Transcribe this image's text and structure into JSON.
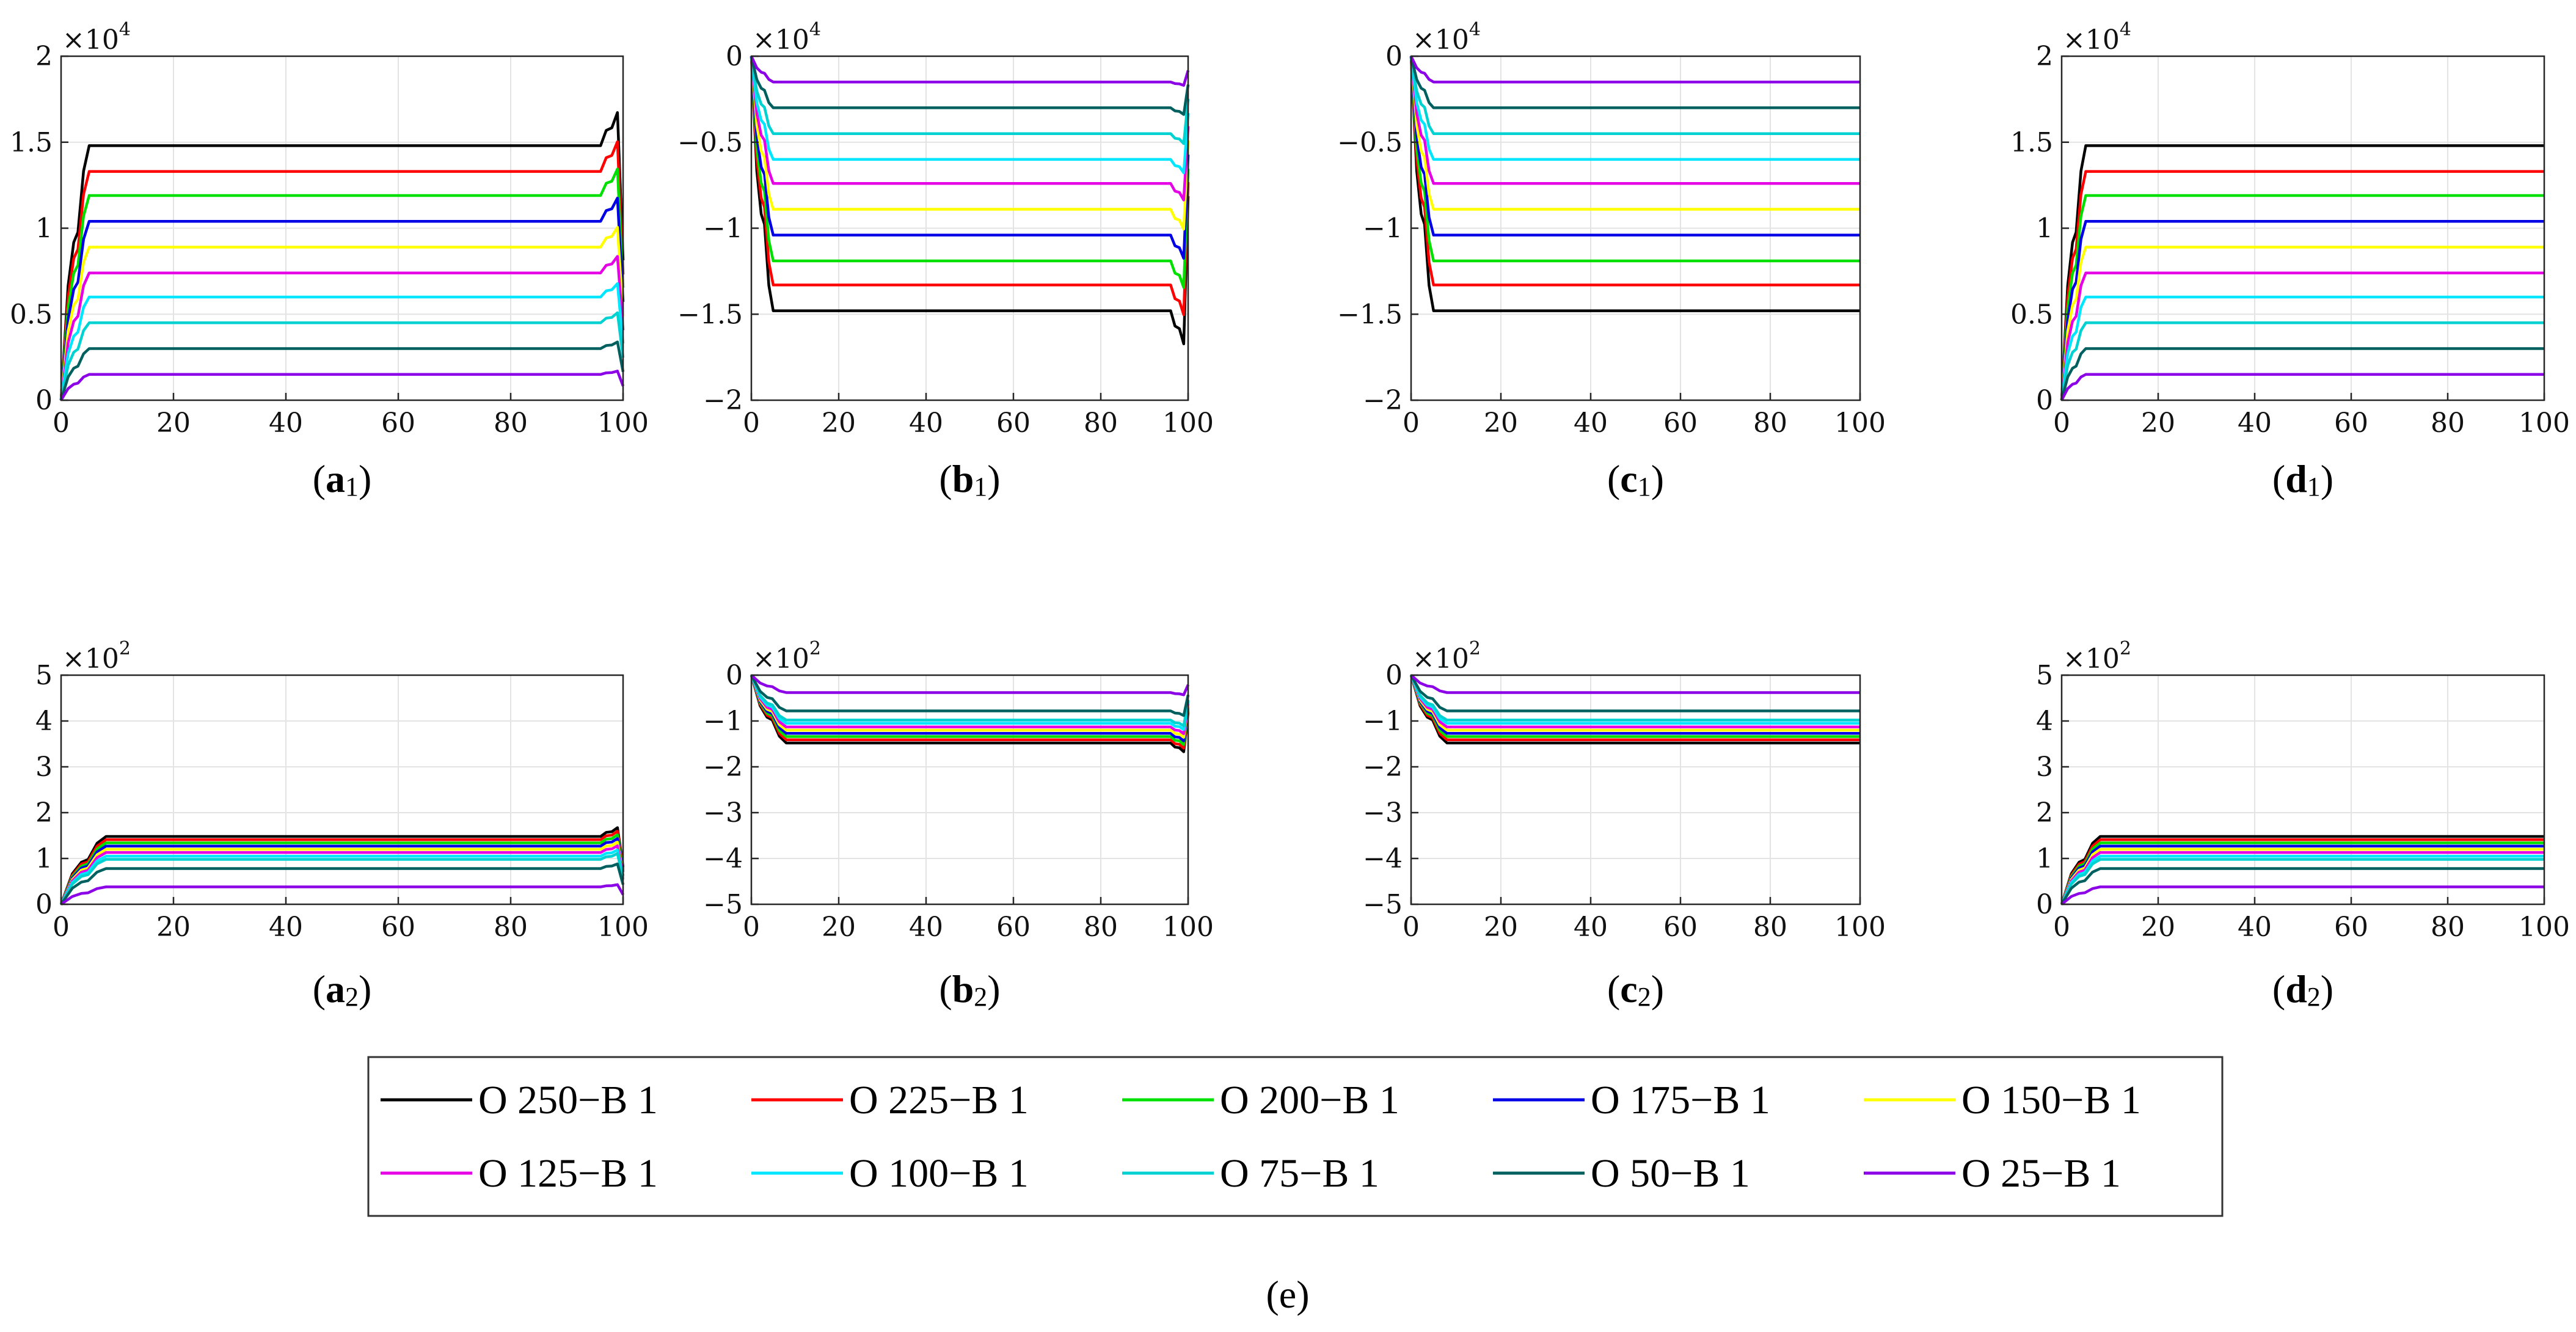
{
  "legend": {
    "items": [
      {
        "label": "O 250−B 1",
        "color": "#000000"
      },
      {
        "label": "O 225−B 1",
        "color": "#ff0000"
      },
      {
        "label": "O 200−B 1",
        "color": "#00e000"
      },
      {
        "label": "O 175−B 1",
        "color": "#0000e6"
      },
      {
        "label": "O 150−B 1",
        "color": "#ffff00"
      },
      {
        "label": "O 125−B 1",
        "color": "#e600e6"
      },
      {
        "label": "O 100−B 1",
        "color": "#00e6ff"
      },
      {
        "label": "O 75−B 1",
        "color": "#00d2d2"
      },
      {
        "label": "O 50−B 1",
        "color": "#006060"
      },
      {
        "label": "O 25−B 1",
        "color": "#8b00e6"
      }
    ]
  },
  "figure_caption": "(e)",
  "chart_data": [
    {
      "id": "a1",
      "type": "line",
      "caption": {
        "open": "(",
        "letter": "a",
        "sub": "1",
        "close": ")"
      },
      "multiplier": {
        "base": "×10",
        "exp": "4"
      },
      "xlim": [
        0,
        100
      ],
      "ylim": [
        0,
        2
      ],
      "xticks": [
        0,
        20,
        40,
        60,
        80,
        100
      ],
      "yticks": [
        0,
        0.5,
        1,
        1.5,
        2
      ],
      "ytick_labels": [
        "0",
        "0.5",
        "1",
        "1.5",
        "2"
      ],
      "grid": true,
      "sign": 1,
      "ramp": 5,
      "end_spike": true,
      "levels": [
        1.48,
        1.33,
        1.19,
        1.04,
        0.89,
        0.74,
        0.6,
        0.45,
        0.3,
        0.15
      ]
    },
    {
      "id": "b1",
      "type": "line",
      "caption": {
        "open": "(",
        "letter": "b",
        "sub": "1",
        "close": ")"
      },
      "multiplier": {
        "base": "×10",
        "exp": "4"
      },
      "xlim": [
        0,
        100
      ],
      "ylim": [
        -2,
        0
      ],
      "xticks": [
        0,
        20,
        40,
        60,
        80,
        100
      ],
      "yticks": [
        -2,
        -1.5,
        -1,
        -0.5,
        0
      ],
      "ytick_labels": [
        "−2",
        "−1.5",
        "−1",
        "−0.5",
        "0"
      ],
      "grid": true,
      "sign": -1,
      "ramp": 5,
      "end_spike": true,
      "levels": [
        1.48,
        1.33,
        1.19,
        1.04,
        0.89,
        0.74,
        0.6,
        0.45,
        0.3,
        0.15
      ]
    },
    {
      "id": "c1",
      "type": "line",
      "caption": {
        "open": "(",
        "letter": "c",
        "sub": "1",
        "close": ")"
      },
      "multiplier": {
        "base": "×10",
        "exp": "4"
      },
      "xlim": [
        0,
        100
      ],
      "ylim": [
        -2,
        0
      ],
      "xticks": [
        0,
        20,
        40,
        60,
        80,
        100
      ],
      "yticks": [
        -2,
        -1.5,
        -1,
        -0.5,
        0
      ],
      "ytick_labels": [
        "−2",
        "−1.5",
        "−1",
        "−0.5",
        "0"
      ],
      "grid": true,
      "sign": -1,
      "ramp": 5,
      "end_spike": false,
      "levels": [
        1.48,
        1.33,
        1.19,
        1.04,
        0.89,
        0.74,
        0.6,
        0.45,
        0.3,
        0.15
      ]
    },
    {
      "id": "d1",
      "type": "line",
      "caption": {
        "open": "(",
        "letter": "d",
        "sub": "1",
        "close": ")"
      },
      "multiplier": {
        "base": "×10",
        "exp": "4"
      },
      "xlim": [
        0,
        100
      ],
      "ylim": [
        0,
        2
      ],
      "xticks": [
        0,
        20,
        40,
        60,
        80,
        100
      ],
      "yticks": [
        0,
        0.5,
        1,
        1.5,
        2
      ],
      "ytick_labels": [
        "0",
        "0.5",
        "1",
        "1.5",
        "2"
      ],
      "grid": true,
      "sign": 1,
      "ramp": 5,
      "end_spike": false,
      "levels": [
        1.48,
        1.33,
        1.19,
        1.04,
        0.89,
        0.74,
        0.6,
        0.45,
        0.3,
        0.15
      ]
    },
    {
      "id": "a2",
      "type": "line",
      "caption": {
        "open": "(",
        "letter": "a",
        "sub": "2",
        "close": ")"
      },
      "multiplier": {
        "base": "×10",
        "exp": "2"
      },
      "xlim": [
        0,
        100
      ],
      "ylim": [
        0,
        5
      ],
      "xticks": [
        0,
        20,
        40,
        60,
        80,
        100
      ],
      "yticks": [
        0,
        1,
        2,
        3,
        4,
        5
      ],
      "ytick_labels": [
        "0",
        "1",
        "2",
        "3",
        "4",
        "5"
      ],
      "grid": true,
      "sign": 1,
      "ramp": 8,
      "end_spike": true,
      "levels": [
        1.48,
        1.41,
        1.34,
        1.27,
        1.2,
        1.13,
        1.05,
        0.98,
        0.78,
        0.38
      ]
    },
    {
      "id": "b2",
      "type": "line",
      "caption": {
        "open": "(",
        "letter": "b",
        "sub": "2",
        "close": ")"
      },
      "multiplier": {
        "base": "×10",
        "exp": "2"
      },
      "xlim": [
        0,
        100
      ],
      "ylim": [
        -5,
        0
      ],
      "xticks": [
        0,
        20,
        40,
        60,
        80,
        100
      ],
      "yticks": [
        -5,
        -4,
        -3,
        -2,
        -1,
        0
      ],
      "ytick_labels": [
        "−5",
        "−4",
        "−3",
        "−2",
        "−1",
        "0"
      ],
      "grid": true,
      "sign": -1,
      "ramp": 8,
      "end_spike": true,
      "levels": [
        1.48,
        1.41,
        1.34,
        1.27,
        1.2,
        1.13,
        1.05,
        0.98,
        0.78,
        0.38
      ]
    },
    {
      "id": "c2",
      "type": "line",
      "caption": {
        "open": "(",
        "letter": "c",
        "sub": "2",
        "close": ")"
      },
      "multiplier": {
        "base": "×10",
        "exp": "2"
      },
      "xlim": [
        0,
        100
      ],
      "ylim": [
        -5,
        0
      ],
      "xticks": [
        0,
        20,
        40,
        60,
        80,
        100
      ],
      "yticks": [
        -5,
        -4,
        -3,
        -2,
        -1,
        0
      ],
      "ytick_labels": [
        "−5",
        "−4",
        "−3",
        "−2",
        "−1",
        "0"
      ],
      "grid": true,
      "sign": -1,
      "ramp": 8,
      "end_spike": false,
      "levels": [
        1.48,
        1.41,
        1.34,
        1.27,
        1.2,
        1.13,
        1.05,
        0.98,
        0.78,
        0.38
      ]
    },
    {
      "id": "d2",
      "type": "line",
      "caption": {
        "open": "(",
        "letter": "d",
        "sub": "2",
        "close": ")"
      },
      "multiplier": {
        "base": "×10",
        "exp": "2"
      },
      "xlim": [
        0,
        100
      ],
      "ylim": [
        0,
        5
      ],
      "xticks": [
        0,
        20,
        40,
        60,
        80,
        100
      ],
      "yticks": [
        0,
        1,
        2,
        3,
        4,
        5
      ],
      "ytick_labels": [
        "0",
        "1",
        "2",
        "3",
        "4",
        "5"
      ],
      "grid": true,
      "sign": 1,
      "ramp": 8,
      "end_spike": false,
      "levels": [
        1.48,
        1.41,
        1.34,
        1.27,
        1.2,
        1.13,
        1.05,
        0.98,
        0.78,
        0.38
      ]
    }
  ]
}
